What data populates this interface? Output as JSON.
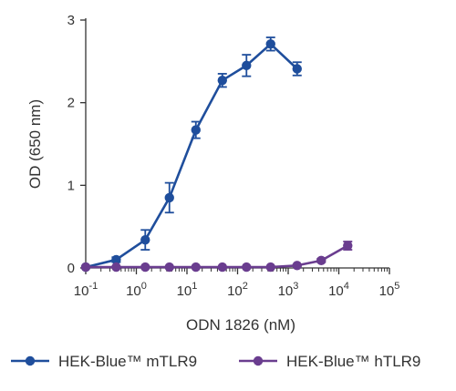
{
  "chart_data": {
    "type": "line",
    "xscale": "log",
    "xlabel": "ODN 1826 (nM)",
    "ylabel": "OD (650 nm)",
    "xlim": [
      0.1,
      100000
    ],
    "ylim": [
      0,
      3
    ],
    "x_ticks": [
      {
        "value": 0.1,
        "base": "10",
        "exp": "-1"
      },
      {
        "value": 1,
        "base": "10",
        "exp": "0"
      },
      {
        "value": 10,
        "base": "10",
        "exp": "1"
      },
      {
        "value": 100,
        "base": "10",
        "exp": "2"
      },
      {
        "value": 1000,
        "base": "10",
        "exp": "3"
      },
      {
        "value": 10000,
        "base": "10",
        "exp": "4"
      },
      {
        "value": 100000,
        "base": "10",
        "exp": "5"
      }
    ],
    "y_ticks": [
      "0",
      "1",
      "2",
      "3"
    ],
    "grid": false,
    "legend_position": "bottom",
    "series": [
      {
        "name": "HEK-Blue™ mTLR9",
        "color": "#1f4e9c",
        "x": [
          0.1,
          0.4,
          1.5,
          4.5,
          15,
          50,
          150,
          450,
          1500
        ],
        "y": [
          0.01,
          0.1,
          0.34,
          0.85,
          1.67,
          2.27,
          2.45,
          2.71,
          2.41
        ],
        "err": [
          0.0,
          0.03,
          0.12,
          0.18,
          0.1,
          0.08,
          0.13,
          0.08,
          0.08
        ]
      },
      {
        "name": "HEK-Blue™ hTLR9",
        "color": "#6a3d8f",
        "x": [
          0.1,
          0.4,
          1.5,
          4.5,
          15,
          50,
          150,
          450,
          1500,
          4500,
          15000
        ],
        "y": [
          0.01,
          0.01,
          0.01,
          0.01,
          0.01,
          0.01,
          0.01,
          0.01,
          0.03,
          0.09,
          0.27
        ],
        "err": [
          0,
          0,
          0,
          0,
          0,
          0,
          0,
          0,
          0.01,
          0.02,
          0.05
        ]
      }
    ]
  }
}
